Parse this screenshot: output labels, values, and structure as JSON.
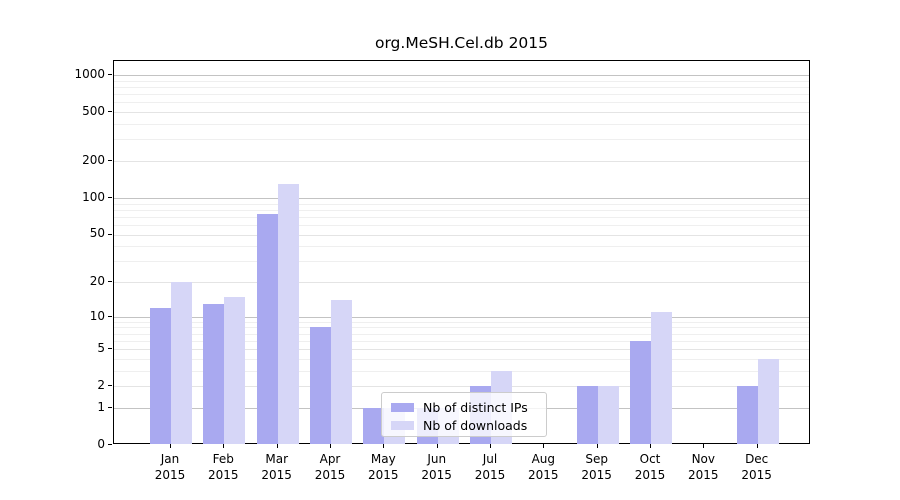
{
  "chart_data": {
    "type": "bar",
    "title": "org.MeSH.Cel.db 2015",
    "categories": [
      "Jan",
      "Feb",
      "Mar",
      "Apr",
      "May",
      "Jun",
      "Jul",
      "Aug",
      "Sep",
      "Oct",
      "Nov",
      "Dec"
    ],
    "category_year": "2015",
    "series": [
      {
        "name": "Nb of distinct IPs",
        "color": "#a9a9f0",
        "values": [
          12,
          13,
          74,
          8,
          1,
          1,
          2,
          0,
          2,
          6,
          0,
          2
        ]
      },
      {
        "name": "Nb of downloads",
        "color": "#d6d6f7",
        "values": [
          20,
          15,
          131,
          14,
          1,
          1,
          3,
          0,
          2,
          11,
          0,
          4
        ]
      }
    ],
    "yscale": "log1p",
    "yticks": [
      0,
      1,
      2,
      5,
      10,
      20,
      50,
      100,
      200,
      500,
      1000
    ],
    "ytick_labels": [
      "0",
      "1",
      "2",
      "5",
      "10",
      "20",
      "50",
      "100",
      "200",
      "500",
      "1000"
    ],
    "ylim": [
      0,
      1300
    ],
    "grid": true,
    "legend_position": "inside-bottom-center"
  }
}
